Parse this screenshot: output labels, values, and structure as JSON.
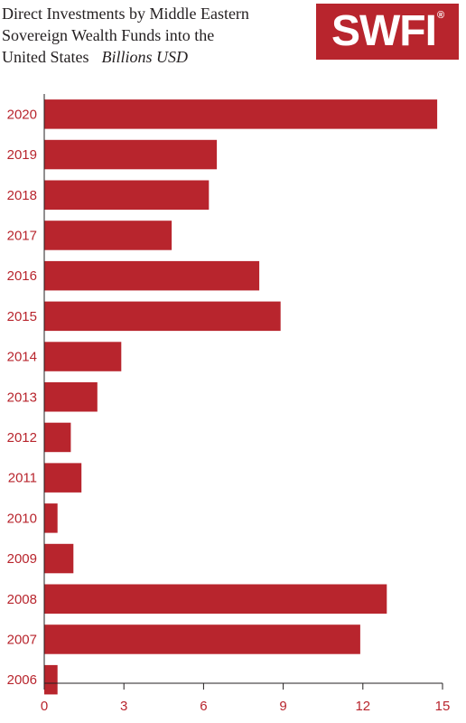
{
  "title_lines": [
    "Direct Investments by Middle Eastern",
    "Sovereign Wealth Funds into the",
    "United States"
  ],
  "unit_label": "Billions USD",
  "logo": {
    "text": "SWFI",
    "mark": "®",
    "color": "#b8252d"
  },
  "chart_data": {
    "type": "bar",
    "orientation": "horizontal",
    "categories": [
      "2020",
      "2019",
      "2018",
      "2017",
      "2016",
      "2015",
      "2014",
      "2013",
      "2012",
      "2011",
      "2010",
      "2009",
      "2008",
      "2007",
      "2006"
    ],
    "values": [
      14.8,
      6.5,
      6.2,
      4.8,
      8.1,
      8.9,
      2.9,
      2.0,
      1.0,
      1.4,
      0.5,
      1.1,
      12.9,
      11.9,
      0.5
    ],
    "xlim": [
      0,
      15
    ],
    "xticks": [
      0,
      3,
      6,
      9,
      12,
      15
    ],
    "bar_color": "#b8252d",
    "grid": false
  }
}
